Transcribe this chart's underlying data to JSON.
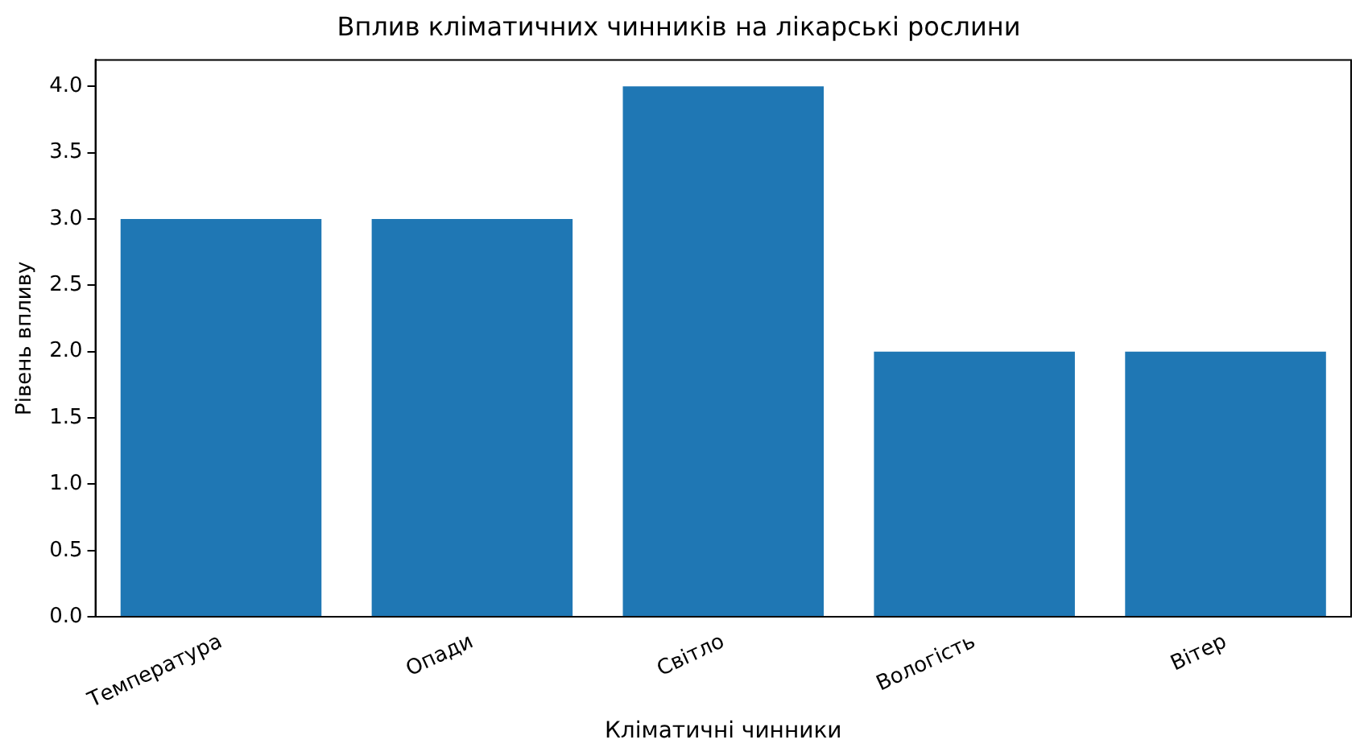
{
  "chart_data": {
    "type": "bar",
    "title": "Вплив кліматичних чинників на лікарські рослини",
    "xlabel": "Кліматичні чинники",
    "ylabel": "Рівень впливу",
    "categories": [
      "Температура",
      "Опади",
      "Світло",
      "Вологість",
      "Вітер"
    ],
    "values": [
      3,
      3,
      4,
      2,
      2
    ],
    "color": "#1f77b4",
    "ylim": [
      0,
      4.2
    ],
    "yticks": [
      {
        "value": 0,
        "label": "0.0"
      },
      {
        "value": 0.5,
        "label": "0.5"
      },
      {
        "value": 1,
        "label": "1.0"
      },
      {
        "value": 1.5,
        "label": "1.5"
      },
      {
        "value": 2,
        "label": "2.0"
      },
      {
        "value": 2.5,
        "label": "2.5"
      },
      {
        "value": 3,
        "label": "3.0"
      },
      {
        "value": 3.5,
        "label": "3.5"
      },
      {
        "value": 4,
        "label": "4.0"
      }
    ],
    "grid": false,
    "legend": false
  }
}
